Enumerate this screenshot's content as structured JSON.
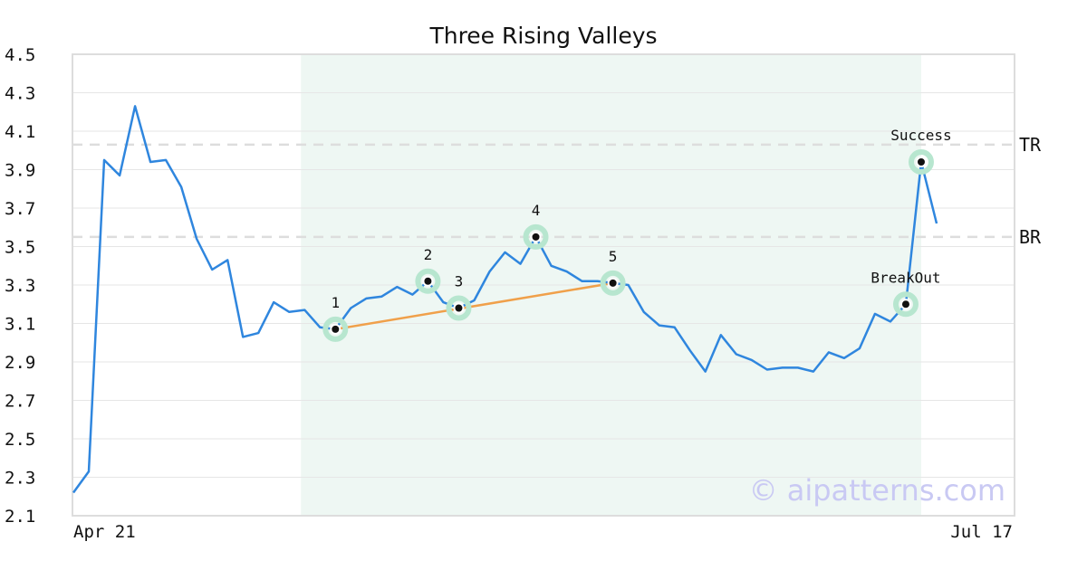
{
  "chart_data": {
    "type": "line",
    "title": "Three Rising Valleys",
    "watermark": "© aipatterns.com",
    "xlabel": "",
    "ylabel": "",
    "ylim": [
      2.1,
      4.5
    ],
    "y_ticks": [
      "4.5",
      "4.3",
      "4.1",
      "3.9",
      "3.7",
      "3.5",
      "3.3",
      "3.1",
      "2.9",
      "2.7",
      "2.5",
      "2.3",
      "2.1"
    ],
    "x_ticks": [
      "Apr 21",
      "Jul 17"
    ],
    "grid": true,
    "colors": {
      "line": "#2f86de",
      "trend": "#f0a04a",
      "pattern_region": "#eef7f3",
      "marker_ring": "#b7e6cf",
      "level_line": "#dddddd"
    },
    "series": [
      {
        "values": [
          2.22,
          2.33,
          3.95,
          3.87,
          4.23,
          3.94,
          3.95,
          3.81,
          3.54,
          3.38,
          3.43,
          3.03,
          3.05,
          3.21,
          3.16,
          3.17,
          3.08,
          3.07,
          3.18,
          3.23,
          3.24,
          3.29,
          3.25,
          3.32,
          3.21,
          3.18,
          3.22,
          3.37,
          3.47,
          3.41,
          3.55,
          3.4,
          3.37,
          3.32,
          3.32,
          3.31,
          3.3,
          3.16,
          3.09,
          3.08,
          2.96,
          2.85,
          3.04,
          2.94,
          2.91,
          2.86,
          2.87,
          2.87,
          2.85,
          2.95,
          2.92,
          2.97,
          3.15,
          3.11,
          3.2,
          3.94,
          3.62
        ]
      }
    ],
    "pattern_region": {
      "start_index": 15,
      "end_index": 55
    },
    "trend_line": {
      "from_index": 17,
      "to_index": 35
    },
    "levels": [
      {
        "label": "TR",
        "value": 4.03
      },
      {
        "label": "BR",
        "value": 3.55
      }
    ],
    "annotations": [
      {
        "label": "1",
        "index": 17
      },
      {
        "label": "2",
        "index": 23
      },
      {
        "label": "3",
        "index": 25
      },
      {
        "label": "4",
        "index": 30
      },
      {
        "label": "5",
        "index": 35
      },
      {
        "label": "BreakOut",
        "index": 54
      },
      {
        "label": "Success",
        "index": 55
      }
    ]
  }
}
